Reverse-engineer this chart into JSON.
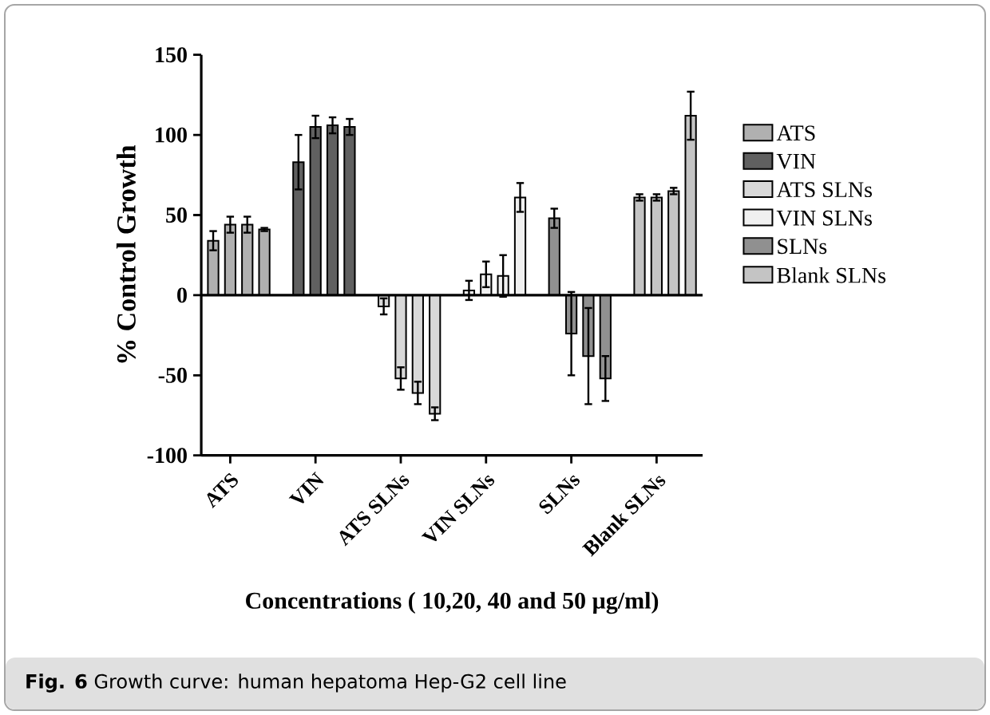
{
  "chart_data": {
    "type": "bar",
    "xlabel": "Concentrations ( 10,20, 40 and 50 µg/ml)",
    "ylabel": "% Control Growth",
    "annotations": [
      "**Fig. 6** Growth curve: human hepatoma Hep-G2 cell line"
    ],
    "categories": [
      null,
      "ATS",
      null,
      null,
      null,
      null,
      "VIN",
      null,
      null,
      null,
      null,
      "ATS SLNs",
      null,
      null,
      null,
      null,
      "VIN SLNs",
      null,
      null,
      null,
      null,
      "SLNs",
      null,
      null,
      null,
      null,
      "Blank SLNs",
      null,
      null
    ],
    "series": [
      {
        "name": "ATS",
        "color": "#b0b0b0",
        "values": [
          34,
          44,
          44,
          41,
          null,
          null,
          null,
          null,
          null,
          null,
          null,
          null,
          null,
          null,
          null,
          null,
          null,
          null,
          null,
          null,
          null,
          null,
          null,
          null,
          null,
          null,
          null,
          null,
          null
        ],
        "errors": [
          6,
          5,
          5,
          1,
          null,
          null,
          null,
          null,
          null,
          null,
          null,
          null,
          null,
          null,
          null,
          null,
          null,
          null,
          null,
          null,
          null,
          null,
          null,
          null,
          null,
          null,
          null,
          null,
          null
        ]
      },
      {
        "name": "VIN",
        "color": "#606060",
        "values": [
          null,
          null,
          null,
          null,
          null,
          83,
          105,
          106,
          105,
          null,
          null,
          null,
          null,
          null,
          null,
          null,
          null,
          null,
          null,
          null,
          null,
          null,
          null,
          null,
          null,
          null,
          null,
          null,
          null
        ],
        "errors": [
          null,
          null,
          null,
          null,
          null,
          17,
          7,
          5,
          5,
          null,
          null,
          null,
          null,
          null,
          null,
          null,
          null,
          null,
          null,
          null,
          null,
          null,
          null,
          null,
          null,
          null,
          null,
          null,
          null
        ]
      },
      {
        "name": "ATS SLNs",
        "color": "#d8d8d8",
        "values": [
          null,
          null,
          null,
          null,
          null,
          null,
          null,
          null,
          null,
          null,
          -7,
          -52,
          -61,
          -74,
          null,
          null,
          null,
          null,
          null,
          null,
          null,
          null,
          null,
          null,
          null,
          null,
          null,
          null,
          null
        ],
        "errors": [
          null,
          null,
          null,
          null,
          null,
          null,
          null,
          null,
          null,
          null,
          5,
          7,
          7,
          4,
          null,
          null,
          null,
          null,
          null,
          null,
          null,
          null,
          null,
          null,
          null,
          null,
          null,
          null,
          null
        ]
      },
      {
        "name": "VIN SLNs",
        "color": "#f0f0f0",
        "values": [
          null,
          null,
          null,
          null,
          null,
          null,
          null,
          null,
          null,
          null,
          null,
          null,
          null,
          null,
          null,
          3,
          13,
          12,
          61,
          null,
          null,
          null,
          null,
          null,
          null,
          null,
          null,
          null,
          null
        ],
        "errors": [
          null,
          null,
          null,
          null,
          null,
          null,
          null,
          null,
          null,
          null,
          null,
          null,
          null,
          null,
          null,
          6,
          8,
          13,
          9,
          null,
          null,
          null,
          null,
          null,
          null,
          null,
          null,
          null,
          null
        ]
      },
      {
        "name": "SLNs",
        "color": "#909090",
        "values": [
          null,
          null,
          null,
          null,
          null,
          null,
          null,
          null,
          null,
          null,
          null,
          null,
          null,
          null,
          null,
          null,
          null,
          null,
          null,
          null,
          48,
          -24,
          -38,
          -52,
          null,
          null,
          null,
          null,
          null
        ],
        "errors": [
          null,
          null,
          null,
          null,
          null,
          null,
          null,
          null,
          null,
          null,
          null,
          null,
          null,
          null,
          null,
          null,
          null,
          null,
          null,
          null,
          6,
          26,
          30,
          14,
          null,
          null,
          null,
          null,
          null
        ]
      },
      {
        "name": "Blank SLNs",
        "color": "#c4c4c4",
        "values": [
          null,
          null,
          null,
          null,
          null,
          null,
          null,
          null,
          null,
          null,
          null,
          null,
          null,
          null,
          null,
          null,
          null,
          null,
          null,
          null,
          null,
          null,
          null,
          null,
          null,
          61,
          61,
          65,
          112
        ],
        "errors": [
          null,
          null,
          null,
          null,
          null,
          null,
          null,
          null,
          null,
          null,
          null,
          null,
          null,
          null,
          null,
          null,
          null,
          null,
          null,
          null,
          null,
          null,
          null,
          null,
          null,
          2,
          2,
          2,
          15
        ]
      }
    ],
    "ylim": [
      -100,
      150
    ],
    "yticks": [
      -100,
      -50,
      0,
      50,
      100,
      150
    ],
    "ref_lines": [
      {
        "axis": "y",
        "value": 0
      }
    ],
    "legend": "right"
  }
}
